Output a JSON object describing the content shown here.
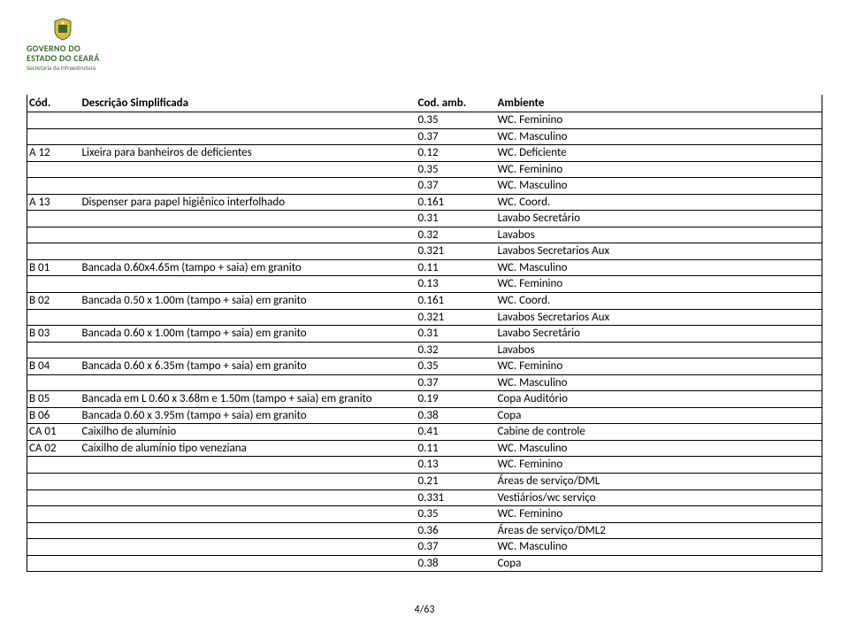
{
  "logo": {
    "line1": "GOVERNO DO",
    "line2": "ESTADO DO CEARÁ",
    "line3": "Secretaria da Infraestrutura"
  },
  "table": {
    "headers": [
      "Cód.",
      "Descrição Simplificada",
      "Cod. amb.",
      "Ambiente"
    ],
    "rows": [
      [
        "",
        "",
        "0.35",
        "WC. Feminino"
      ],
      [
        "",
        "",
        "0.37",
        "WC. Masculino"
      ],
      [
        "A 12",
        "Lixeira para banheiros de deficientes",
        "0.12",
        "WC. Deficiente"
      ],
      [
        "",
        "",
        "0.35",
        "WC. Feminino"
      ],
      [
        "",
        "",
        "0.37",
        "WC. Masculino"
      ],
      [
        "A 13",
        "Dispenser para papel higiênico interfolhado",
        "0.161",
        "WC. Coord."
      ],
      [
        "",
        "",
        "0.31",
        "Lavabo Secretário"
      ],
      [
        "",
        "",
        "0.32",
        " Lavabos"
      ],
      [
        "",
        "",
        "0.321",
        "Lavabos Secretarios Aux"
      ],
      [
        "B 01",
        "Bancada 0.60x4.65m (tampo + saia) em granito",
        "0.11",
        "WC. Masculino"
      ],
      [
        "",
        "",
        "0.13",
        "WC. Feminino"
      ],
      [
        "B 02",
        "Bancada 0.50 x 1.00m (tampo + saia) em granito",
        "0.161",
        "WC. Coord."
      ],
      [
        "",
        "",
        "0.321",
        "Lavabos Secretarios Aux"
      ],
      [
        "B 03",
        "Bancada 0.60 x 1.00m (tampo + saia) em granito",
        "0.31",
        "Lavabo Secretário"
      ],
      [
        "",
        "",
        "0.32",
        " Lavabos"
      ],
      [
        "B 04",
        "Bancada 0.60 x 6.35m (tampo + saia) em granito",
        "0.35",
        "WC. Feminino"
      ],
      [
        "",
        "",
        "0.37",
        "WC. Masculino"
      ],
      [
        "B 05",
        "Bancada em L 0.60 x 3.68m e 1.50m (tampo + saia) em granito",
        "0.19",
        "Copa Auditório"
      ],
      [
        "B 06",
        "Bancada 0.60 x 3.95m (tampo + saia) em granito",
        "0.38",
        "Copa"
      ],
      [
        "CA 01",
        "Caixilho de alumínio",
        "0.41",
        "Cabine de controle"
      ],
      [
        "CA 02",
        "Caixilho de alumínio tipo veneziana",
        "0.11",
        "WC. Masculino"
      ],
      [
        "",
        "",
        "0.13",
        "WC. Feminino"
      ],
      [
        "",
        "",
        "0.21",
        "Áreas de serviço/DML"
      ],
      [
        "",
        "",
        "0.331",
        "Vestiários/wc serviço"
      ],
      [
        "",
        "",
        "0.35",
        "WC. Feminino"
      ],
      [
        "",
        "",
        "0.36",
        "Áreas de serviço/DML2"
      ],
      [
        "",
        "",
        "0.37",
        "WC. Masculino"
      ],
      [
        "",
        "",
        "0.38",
        "Copa"
      ]
    ]
  },
  "footer": "4/63",
  "colors": {
    "logo_green": "#3a6b2e",
    "logo_yellow": "#e2b93b",
    "border": "#000000",
    "text": "#000000",
    "bg": "#ffffff"
  }
}
